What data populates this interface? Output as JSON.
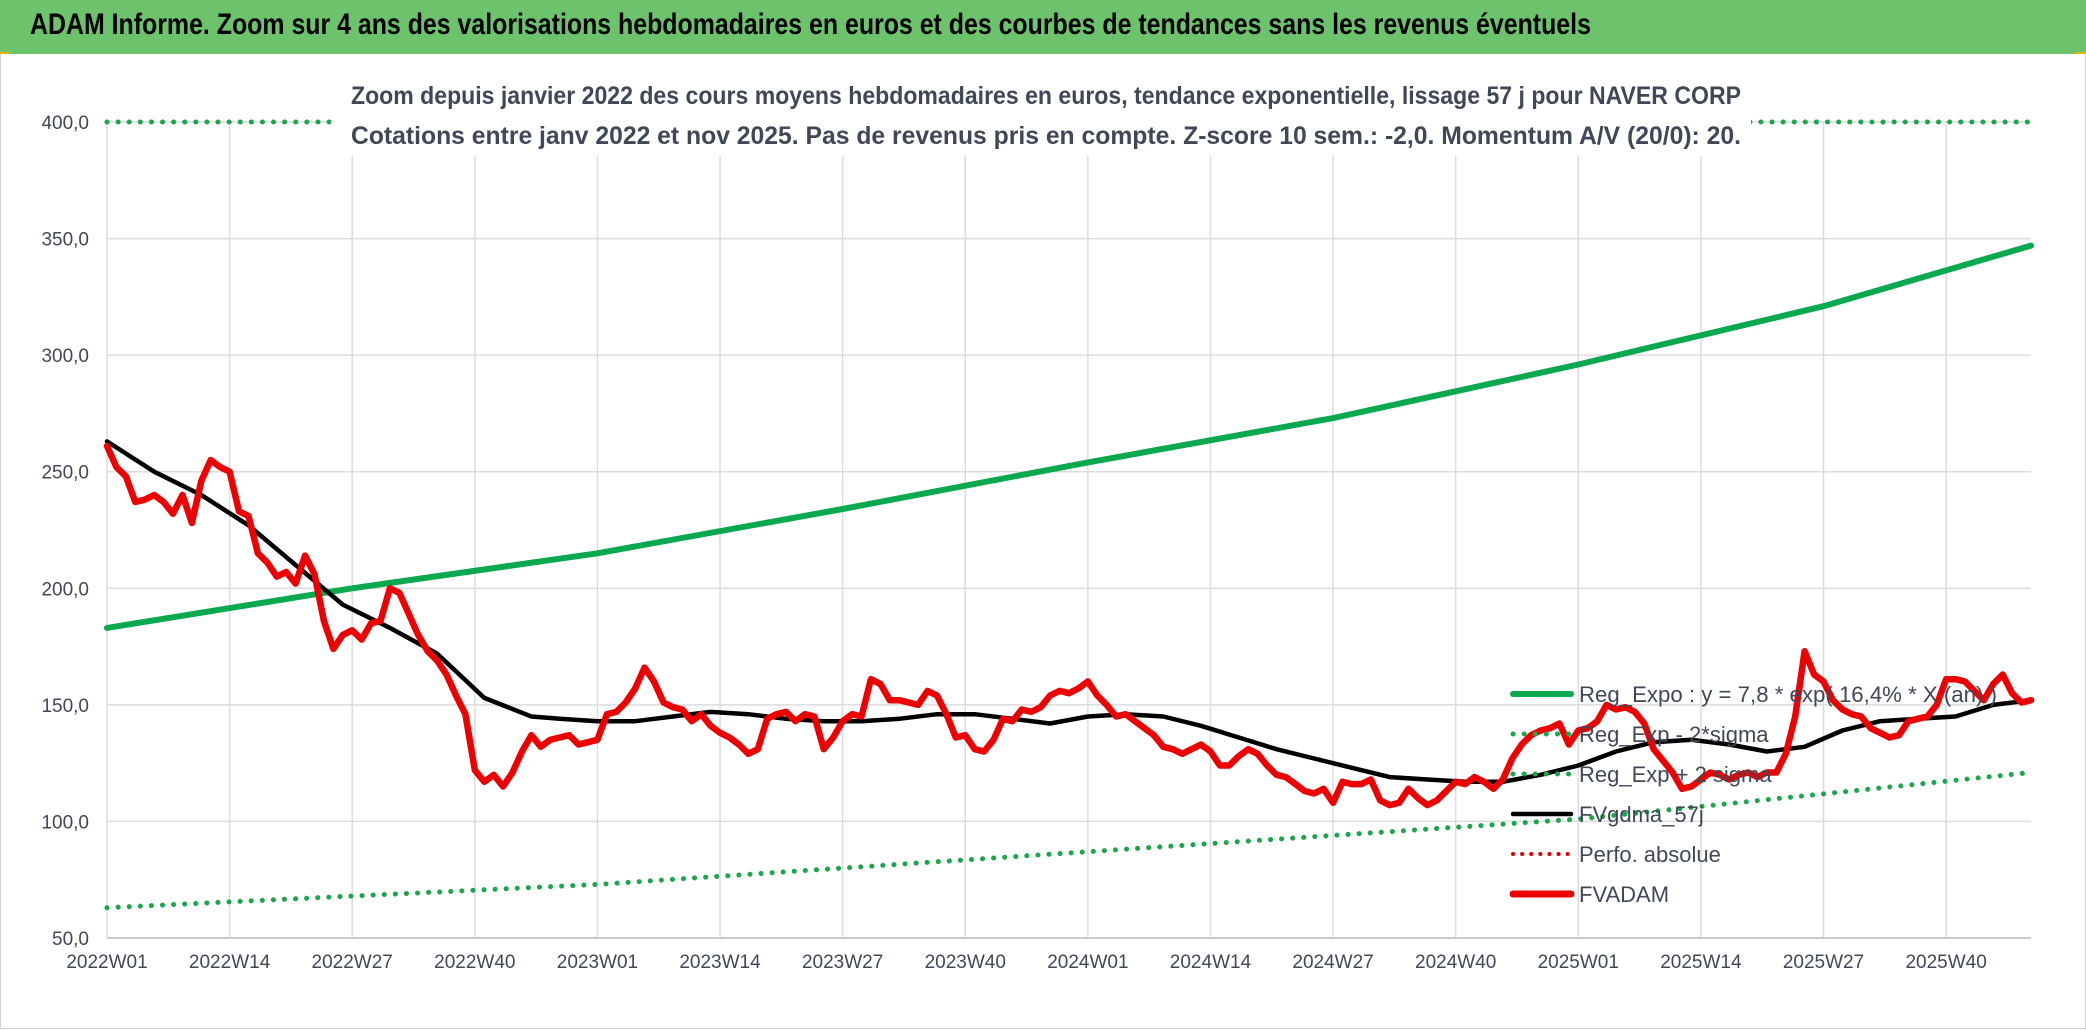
{
  "banner": {
    "title": "ADAM Informe. Zoom sur 4 ans des valorisations hebdomadaires en euros et des courbes de tendances sans les revenus éventuels"
  },
  "colors": {
    "banner": "#6cc36c",
    "reg_expo": "#0aa84f",
    "sigma": "#1aa64a",
    "gdma": "#000000",
    "perfo": "#e00000",
    "fvadam": "#ee0000",
    "grid": "#dcdcdc",
    "text": "#404858"
  },
  "chart_data": {
    "type": "line",
    "title": "Zoom depuis janvier 2022 des cours moyens hebdomadaires en euros, tendance exponentielle, lissage 57 j pour NAVER CORP",
    "subtitle": "Cotations entre janv 2022 et nov 2025. Pas de revenus pris en compte. Z-score 10 sem.: -2,0. Momentum A/V (20/0): 20.",
    "xlabel": "",
    "ylabel": "",
    "ylim": [
      50,
      400
    ],
    "yticks": [
      "50,0",
      "100,0",
      "150,0",
      "200,0",
      "250,0",
      "300,0",
      "350,0",
      "400,0"
    ],
    "x_tick_labels": [
      "2022W01",
      "2022W14",
      "2022W27",
      "2022W40",
      "2023W01",
      "2023W14",
      "2023W27",
      "2023W40",
      "2024W01",
      "2024W14",
      "2024W27",
      "2024W40",
      "2025W01",
      "2025W14",
      "2025W27",
      "2025W40"
    ],
    "weeks_total": 205,
    "grid": true,
    "legend_position": "bottom-right",
    "legend": [
      {
        "label": "Reg_Expo : y = 7,8 * exp( 16,4% *  X (an) )",
        "style": "solid",
        "key": "reg_expo"
      },
      {
        "label": "Reg_Exp - 2*sigma",
        "style": "dotted",
        "key": "sigma"
      },
      {
        "label": "Reg_Exp + 2 sigma",
        "style": "dotted",
        "key": "sigma"
      },
      {
        "label": "FVgdma_57j",
        "style": "solid",
        "key": "gdma"
      },
      {
        "label": "Perfo. absolue",
        "style": "dotted",
        "key": "perfo"
      },
      {
        "label": "FVADAM",
        "style": "solid-thick",
        "key": "fvadam"
      }
    ],
    "series": [
      {
        "name": "Reg_Expo : y = 7,8 * exp( 16,4% *  X (an) )",
        "key": "reg_expo",
        "style": "solid",
        "x": [
          0,
          26,
          52,
          78,
          104,
          130,
          156,
          182,
          204
        ],
        "values": [
          183,
          200,
          215,
          234,
          254,
          273,
          296,
          321,
          347
        ]
      },
      {
        "name": "Reg_Exp - 2*sigma",
        "key": "sigma_low",
        "style": "dotted",
        "x": [
          0,
          52,
          104,
          156,
          204
        ],
        "values": [
          63,
          73,
          87,
          101,
          121
        ]
      },
      {
        "name": "Reg_Exp + 2 sigma",
        "key": "sigma_high",
        "style": "dotted",
        "x": [
          0,
          24,
          178,
          204
        ],
        "values": [
          400,
          400,
          400,
          400
        ]
      },
      {
        "name": "FVgdma_57j",
        "key": "gdma",
        "style": "solid",
        "x": [
          0,
          5,
          10,
          15,
          20,
          25,
          30,
          35,
          40,
          45,
          48,
          52,
          56,
          60,
          64,
          68,
          72,
          76,
          80,
          84,
          88,
          92,
          96,
          100,
          104,
          108,
          112,
          116,
          120,
          124,
          128,
          132,
          136,
          140,
          144,
          148,
          152,
          156,
          160,
          164,
          168,
          172,
          176,
          180,
          184,
          188,
          192,
          196,
          200,
          204
        ],
        "values": [
          263,
          250,
          240,
          227,
          210,
          193,
          183,
          172,
          153,
          145,
          144,
          143,
          143,
          145,
          147,
          146,
          144,
          143,
          143,
          144,
          146,
          146,
          144,
          142,
          145,
          146,
          145,
          141,
          136,
          131,
          127,
          123,
          119,
          118,
          117,
          117,
          120,
          124,
          130,
          134,
          135,
          133,
          130,
          132,
          139,
          143,
          144,
          145,
          150,
          152
        ]
      },
      {
        "name": "Perfo. absolue",
        "key": "perfo",
        "style": "dotted",
        "x": [],
        "values": []
      },
      {
        "name": "FVADAM",
        "key": "fvadam",
        "style": "solid-thick",
        "x": [
          0,
          1,
          2,
          3,
          4,
          5,
          6,
          7,
          8,
          9,
          10,
          11,
          12,
          13,
          14,
          15,
          16,
          17,
          18,
          19,
          20,
          21,
          22,
          23,
          24,
          25,
          26,
          27,
          28,
          29,
          30,
          31,
          32,
          33,
          34,
          35,
          36,
          37,
          38,
          39,
          40,
          41,
          42,
          43,
          44,
          45,
          46,
          47,
          48,
          49,
          50,
          51,
          52,
          53,
          54,
          55,
          56,
          57,
          58,
          59,
          60,
          61,
          62,
          63,
          64,
          65,
          66,
          67,
          68,
          69,
          70,
          71,
          72,
          73,
          74,
          75,
          76,
          77,
          78,
          79,
          80,
          81,
          82,
          83,
          84,
          85,
          86,
          87,
          88,
          89,
          90,
          91,
          92,
          93,
          94,
          95,
          96,
          97,
          98,
          99,
          100,
          101,
          102,
          103,
          104,
          105,
          106,
          107,
          108,
          109,
          110,
          111,
          112,
          113,
          114,
          115,
          116,
          117,
          118,
          119,
          120,
          121,
          122,
          123,
          124,
          125,
          126,
          127,
          128,
          129,
          130,
          131,
          132,
          133,
          134,
          135,
          136,
          137,
          138,
          139,
          140,
          141,
          142,
          143,
          144,
          145,
          146,
          147,
          148,
          149,
          150,
          151,
          152,
          153,
          154,
          155,
          156,
          157,
          158,
          159,
          160,
          161,
          162,
          163,
          164,
          165,
          166,
          167,
          168,
          169,
          170,
          171,
          172,
          173,
          174,
          175,
          176,
          177,
          178,
          179,
          180,
          181,
          182,
          183,
          184,
          185,
          186,
          187,
          188,
          189,
          190,
          191,
          192,
          193,
          194,
          195,
          196,
          197,
          198,
          199,
          200,
          201,
          202,
          203,
          204
        ],
        "values": [
          261,
          252,
          248,
          237,
          238,
          240,
          237,
          232,
          240,
          228,
          246,
          255,
          252,
          250,
          233,
          231,
          215,
          211,
          205,
          207,
          202,
          214,
          206,
          186,
          174,
          180,
          182,
          178,
          185,
          186,
          200,
          198,
          189,
          180,
          173,
          169,
          163,
          154,
          146,
          122,
          117,
          120,
          115,
          121,
          130,
          137,
          132,
          135,
          136,
          137,
          133,
          134,
          135,
          146,
          147,
          151,
          157,
          166,
          160,
          151,
          149,
          148,
          143,
          146,
          141,
          138,
          136,
          133,
          129,
          131,
          144,
          146,
          147,
          143,
          146,
          145,
          131,
          136,
          143,
          146,
          145,
          161,
          159,
          152,
          152,
          151,
          150,
          156,
          154,
          146,
          136,
          137,
          131,
          130,
          135,
          144,
          143,
          148,
          147,
          149,
          154,
          156,
          155,
          157,
          160,
          154,
          150,
          145,
          146,
          143,
          140,
          137,
          132,
          131,
          129,
          131,
          133,
          130,
          124,
          124,
          128,
          131,
          129,
          124,
          120,
          119,
          116,
          113,
          112,
          114,
          108,
          117,
          116,
          116,
          118,
          109,
          107,
          108,
          114,
          110,
          107,
          109,
          113,
          117,
          116,
          119,
          117,
          114,
          118,
          127,
          133,
          137,
          139,
          140,
          142,
          133,
          139,
          140,
          143,
          150,
          148,
          149,
          147,
          142,
          131,
          126,
          121,
          114,
          115,
          118,
          121,
          120,
          118,
          120,
          121,
          119,
          121,
          121,
          129,
          145,
          173,
          163,
          160,
          152,
          148,
          146,
          145,
          140,
          138,
          136,
          137,
          143,
          144,
          145,
          150,
          161,
          161,
          160,
          156,
          152,
          159,
          163,
          155,
          151,
          152
        ]
      }
    ]
  }
}
